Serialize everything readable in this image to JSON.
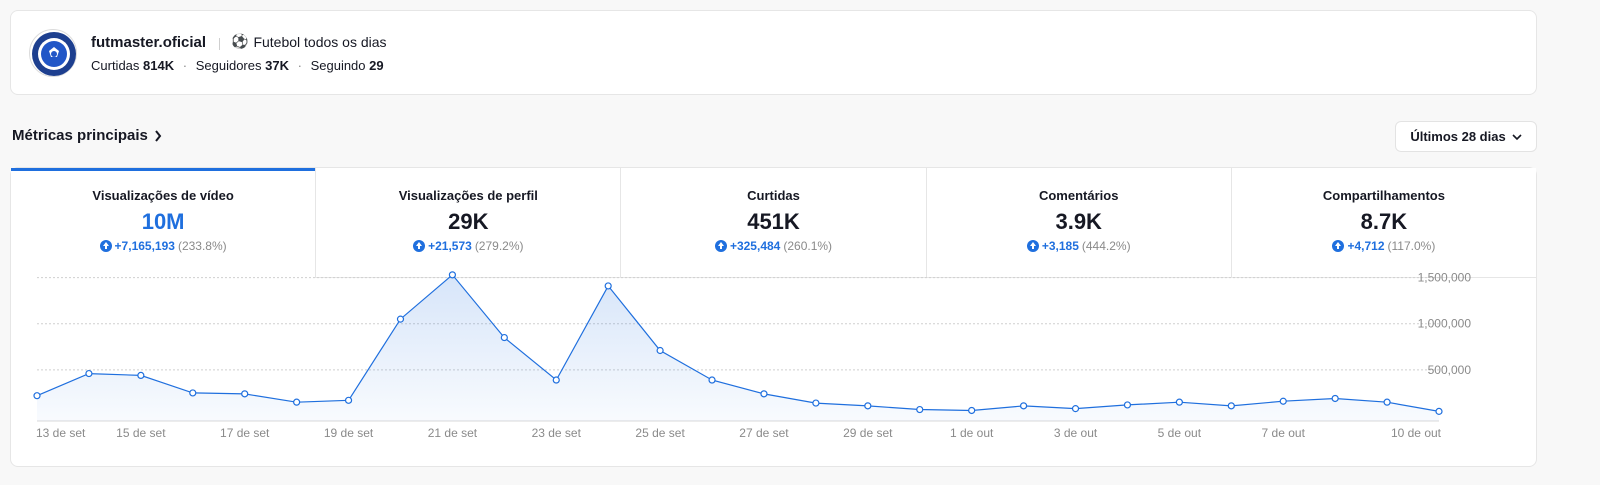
{
  "profile": {
    "name": "futmaster.oficial",
    "bio_emoji": "⚽",
    "bio": "Futebol todos os dias",
    "likes_label": "Curtidas",
    "likes": "814K",
    "followers_label": "Seguidores",
    "followers": "37K",
    "following_label": "Seguindo",
    "following": "29",
    "separator": "·"
  },
  "section": {
    "title": "Métricas principais",
    "range": "Últimos 28 dias"
  },
  "tabs": [
    {
      "label": "Visualizações de vídeo",
      "value": "10M",
      "delta": "+7,165,193",
      "pct": "(233.8%)",
      "active": true
    },
    {
      "label": "Visualizações de perfil",
      "value": "29K",
      "delta": "+21,573",
      "pct": "(279.2%)",
      "active": false
    },
    {
      "label": "Curtidas",
      "value": "451K",
      "delta": "+325,484",
      "pct": "(260.1%)",
      "active": false
    },
    {
      "label": "Comentários",
      "value": "3.9K",
      "delta": "+3,185",
      "pct": "(444.2%)",
      "active": false
    },
    {
      "label": "Compartilhamentos",
      "value": "8.7K",
      "delta": "+4,712",
      "pct": "(117.0%)",
      "active": false
    }
  ],
  "colors": {
    "accent": "#1f6fde",
    "muted": "#8a8a8a"
  },
  "chart_data": {
    "type": "area",
    "x": [
      "13 de set",
      "14 de set",
      "15 de set",
      "16 de set",
      "17 de set",
      "18 de set",
      "19 de set",
      "20 de set",
      "21 de set",
      "22 de set",
      "23 de set",
      "24 de set",
      "25 de set",
      "26 de set",
      "27 de set",
      "28 de set",
      "29 de set",
      "30 de set",
      "1 de out",
      "2 de out",
      "3 de out",
      "4 de out",
      "5 de out",
      "6 de out",
      "7 de out",
      "8 de out",
      "9 de out",
      "10 de out"
    ],
    "xtick_labels": [
      "13 de set",
      "15 de set",
      "17 de set",
      "19 de set",
      "21 de set",
      "23 de set",
      "25 de set",
      "27 de set",
      "29 de set",
      "1 de out",
      "3 de out",
      "5 de out",
      "7 de out",
      "10 de out"
    ],
    "xtick_index": [
      0,
      2,
      4,
      6,
      8,
      10,
      12,
      14,
      16,
      18,
      20,
      22,
      24,
      27
    ],
    "series": [
      {
        "values": [
          220000,
          460000,
          440000,
          250000,
          240000,
          150000,
          170000,
          1050000,
          1530000,
          850000,
          390000,
          1410000,
          710000,
          390000,
          240000,
          140000,
          110000,
          70000,
          60000,
          110000,
          80000,
          120000,
          150000,
          110000,
          160000,
          190000,
          150000,
          50000
        ]
      }
    ],
    "yticks": [
      500000,
      1000000,
      1500000
    ],
    "ytick_labels": [
      "500,000",
      "1,000,000",
      "1,500,000"
    ],
    "ylim": [
      0,
      1550000
    ],
    "grid": true
  }
}
